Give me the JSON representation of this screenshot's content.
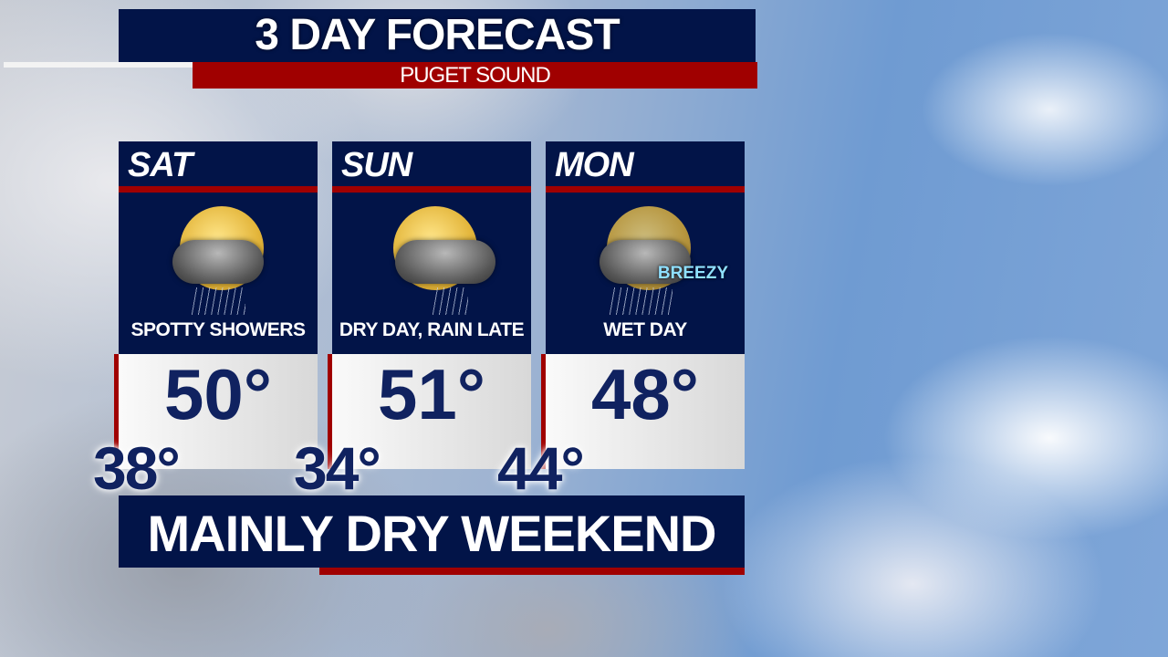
{
  "header": {
    "title": "3 DAY FORECAST",
    "subtitle": "PUGET SOUND"
  },
  "days": [
    {
      "day": "SAT",
      "condition": "SPOTTY SHOWERS",
      "high": "50°",
      "low": "38°",
      "icon": "partly-sunny-showers-icon"
    },
    {
      "day": "SUN",
      "condition": "DRY DAY, RAIN LATE",
      "high": "51°",
      "low": "34°",
      "icon": "partly-sunny-rain-icon"
    },
    {
      "day": "MON",
      "condition": "WET DAY",
      "high": "48°",
      "low": "44°",
      "icon": "cloudy-rain-wind-icon",
      "badge": "BREEZY"
    }
  ],
  "summary": "MAINLY DRY WEEKEND",
  "colors": {
    "navy": "#021448",
    "red": "#a00000",
    "temp_text": "#102260",
    "breezy": "#8fe0ff"
  }
}
